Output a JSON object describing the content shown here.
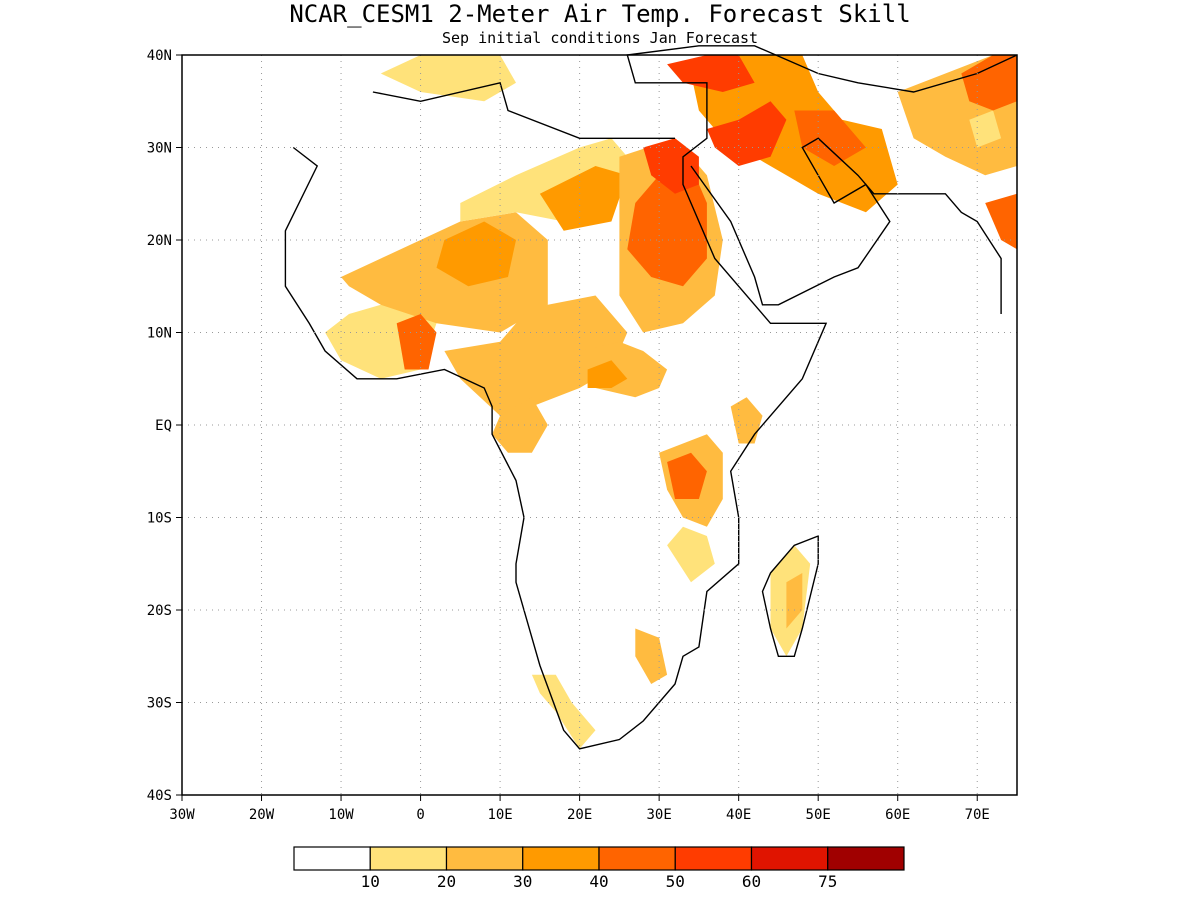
{
  "title": "NCAR_CESM1 2-Meter Air Temp. Forecast Skill",
  "subtitle": "Sep initial conditions  Jan Forecast",
  "map": {
    "lon_range": [
      -30,
      75
    ],
    "lat_range": [
      -40,
      40
    ],
    "lat_ticks": [
      {
        "value": 40,
        "label": "40N"
      },
      {
        "value": 30,
        "label": "30N"
      },
      {
        "value": 20,
        "label": "20N"
      },
      {
        "value": 10,
        "label": "10N"
      },
      {
        "value": 0,
        "label": "EQ"
      },
      {
        "value": -10,
        "label": "10S"
      },
      {
        "value": -20,
        "label": "20S"
      },
      {
        "value": -30,
        "label": "30S"
      },
      {
        "value": -40,
        "label": "40S"
      }
    ],
    "lon_ticks": [
      {
        "value": -30,
        "label": "30W"
      },
      {
        "value": -20,
        "label": "20W"
      },
      {
        "value": -10,
        "label": "10W"
      },
      {
        "value": 0,
        "label": "0"
      },
      {
        "value": 10,
        "label": "10E"
      },
      {
        "value": 20,
        "label": "20E"
      },
      {
        "value": 30,
        "label": "30E"
      },
      {
        "value": 40,
        "label": "40E"
      },
      {
        "value": 50,
        "label": "50E"
      },
      {
        "value": 60,
        "label": "60E"
      },
      {
        "value": 70,
        "label": "70E"
      }
    ],
    "grid": true
  },
  "colorbar": {
    "colors": [
      "#ffffff",
      "#ffe27a",
      "#ffbb40",
      "#ff9a00",
      "#ff6400",
      "#ff3c00",
      "#e01400",
      "#a00000"
    ],
    "labels": [
      "10",
      "20",
      "30",
      "40",
      "50",
      "60",
      "75"
    ]
  },
  "regions": [
    {
      "level": 1,
      "points": [
        [
          -5,
          13
        ],
        [
          -3,
          14
        ],
        [
          0,
          13
        ],
        [
          2,
          11
        ],
        [
          0,
          6
        ],
        [
          -5,
          5
        ],
        [
          -10,
          7
        ],
        [
          -12,
          10
        ],
        [
          -9,
          12
        ]
      ]
    },
    {
      "level": 2,
      "points": [
        [
          -10,
          16
        ],
        [
          -5,
          18
        ],
        [
          5,
          22
        ],
        [
          12,
          23
        ],
        [
          16,
          20
        ],
        [
          16,
          13
        ],
        [
          10,
          10
        ],
        [
          2,
          11
        ],
        [
          -5,
          13
        ],
        [
          -9,
          15
        ]
      ]
    },
    {
      "level": 2,
      "points": [
        [
          3,
          8
        ],
        [
          10,
          9
        ],
        [
          13,
          12
        ],
        [
          16,
          13
        ],
        [
          22,
          14
        ],
        [
          26,
          10
        ],
        [
          24,
          6
        ],
        [
          20,
          4
        ],
        [
          14,
          2
        ],
        [
          10,
          1
        ],
        [
          5,
          5
        ]
      ]
    },
    {
      "level": 1,
      "points": [
        [
          5,
          24
        ],
        [
          12,
          27
        ],
        [
          20,
          30
        ],
        [
          24,
          31
        ],
        [
          27,
          28
        ],
        [
          24,
          24
        ],
        [
          18,
          22
        ],
        [
          12,
          23
        ],
        [
          5,
          22
        ]
      ]
    },
    {
      "level": 3,
      "points": [
        [
          15,
          25
        ],
        [
          22,
          28
        ],
        [
          26,
          27
        ],
        [
          24,
          22
        ],
        [
          18,
          21
        ]
      ]
    },
    {
      "level": 3,
      "points": [
        [
          3,
          20
        ],
        [
          8,
          22
        ],
        [
          12,
          20
        ],
        [
          11,
          16
        ],
        [
          6,
          15
        ],
        [
          2,
          17
        ]
      ]
    },
    {
      "level": 4,
      "points": [
        [
          -3,
          11
        ],
        [
          0,
          12
        ],
        [
          2,
          10
        ],
        [
          1,
          6
        ],
        [
          -2,
          6
        ]
      ]
    },
    {
      "level": 2,
      "points": [
        [
          25,
          29
        ],
        [
          32,
          31
        ],
        [
          36,
          27
        ],
        [
          38,
          20
        ],
        [
          37,
          14
        ],
        [
          33,
          11
        ],
        [
          28,
          10
        ],
        [
          25,
          14
        ],
        [
          25,
          22
        ]
      ]
    },
    {
      "level": 4,
      "points": [
        [
          27,
          24
        ],
        [
          30,
          27
        ],
        [
          34,
          28
        ],
        [
          36,
          24
        ],
        [
          36,
          18
        ],
        [
          33,
          15
        ],
        [
          29,
          16
        ],
        [
          26,
          19
        ]
      ]
    },
    {
      "level": 5,
      "points": [
        [
          28,
          30
        ],
        [
          32,
          31
        ],
        [
          35,
          29
        ],
        [
          35,
          26
        ],
        [
          32,
          25
        ],
        [
          29,
          27
        ]
      ]
    },
    {
      "level": 2,
      "points": [
        [
          20,
          8
        ],
        [
          25,
          9
        ],
        [
          28,
          8
        ],
        [
          31,
          6
        ],
        [
          30,
          4
        ],
        [
          27,
          3
        ],
        [
          22,
          4
        ]
      ]
    },
    {
      "level": 3,
      "points": [
        [
          21,
          6
        ],
        [
          24,
          7
        ],
        [
          26,
          5
        ],
        [
          24,
          4
        ],
        [
          21,
          4
        ]
      ]
    },
    {
      "level": 2,
      "points": [
        [
          10,
          1
        ],
        [
          14,
          3
        ],
        [
          16,
          0
        ],
        [
          14,
          -3
        ],
        [
          11,
          -3
        ],
        [
          9,
          -1
        ]
      ]
    },
    {
      "level": 2,
      "points": [
        [
          30,
          -3
        ],
        [
          33,
          -2
        ],
        [
          36,
          -1
        ],
        [
          38,
          -3
        ],
        [
          38,
          -8
        ],
        [
          36,
          -11
        ],
        [
          33,
          -10
        ],
        [
          31,
          -7
        ]
      ]
    },
    {
      "level": 4,
      "points": [
        [
          31,
          -4
        ],
        [
          34,
          -3
        ],
        [
          36,
          -5
        ],
        [
          35,
          -8
        ],
        [
          32,
          -8
        ]
      ]
    },
    {
      "level": 2,
      "points": [
        [
          39,
          2
        ],
        [
          41,
          3
        ],
        [
          43,
          1
        ],
        [
          42,
          -2
        ],
        [
          40,
          -2
        ]
      ]
    },
    {
      "level": 1,
      "points": [
        [
          44,
          -16
        ],
        [
          47,
          -13
        ],
        [
          49,
          -15
        ],
        [
          48,
          -22
        ],
        [
          46,
          -25
        ],
        [
          44,
          -22
        ]
      ]
    },
    {
      "level": 2,
      "points": [
        [
          46,
          -17
        ],
        [
          48,
          -16
        ],
        [
          48,
          -20
        ],
        [
          46,
          -22
        ]
      ]
    },
    {
      "level": 1,
      "points": [
        [
          14,
          -27
        ],
        [
          17,
          -27
        ],
        [
          19,
          -30
        ],
        [
          22,
          -33
        ],
        [
          20,
          -35
        ],
        [
          17,
          -31
        ],
        [
          15,
          -29
        ]
      ]
    },
    {
      "level": 2,
      "points": [
        [
          27,
          -22
        ],
        [
          30,
          -23
        ],
        [
          31,
          -27
        ],
        [
          29,
          -28
        ],
        [
          27,
          -25
        ]
      ]
    },
    {
      "level": 1,
      "points": [
        [
          31,
          -13
        ],
        [
          33,
          -11
        ],
        [
          36,
          -12
        ],
        [
          37,
          -15
        ],
        [
          34,
          -17
        ]
      ]
    },
    {
      "level": 3,
      "points": [
        [
          34,
          38
        ],
        [
          40,
          40
        ],
        [
          48,
          40
        ],
        [
          50,
          36
        ],
        [
          53,
          33
        ],
        [
          58,
          32
        ],
        [
          60,
          26
        ],
        [
          56,
          23
        ],
        [
          50,
          25
        ],
        [
          46,
          27
        ],
        [
          42,
          29
        ],
        [
          38,
          31
        ],
        [
          35,
          34
        ]
      ]
    },
    {
      "level": 5,
      "points": [
        [
          36,
          32
        ],
        [
          40,
          33
        ],
        [
          44,
          35
        ],
        [
          46,
          33
        ],
        [
          44,
          29
        ],
        [
          40,
          28
        ],
        [
          37,
          30
        ]
      ]
    },
    {
      "level": 4,
      "points": [
        [
          47,
          34
        ],
        [
          52,
          34
        ],
        [
          56,
          30
        ],
        [
          52,
          28
        ],
        [
          48,
          30
        ]
      ]
    },
    {
      "level": 5,
      "points": [
        [
          31,
          39
        ],
        [
          36,
          40
        ],
        [
          40,
          40
        ],
        [
          42,
          37
        ],
        [
          38,
          36
        ],
        [
          33,
          37
        ]
      ]
    },
    {
      "level": 2,
      "points": [
        [
          60,
          36
        ],
        [
          66,
          38
        ],
        [
          72,
          40
        ],
        [
          75,
          39
        ],
        [
          75,
          28
        ],
        [
          71,
          27
        ],
        [
          66,
          29
        ],
        [
          62,
          31
        ]
      ]
    },
    {
      "level": 4,
      "points": [
        [
          68,
          38
        ],
        [
          72,
          40
        ],
        [
          75,
          40
        ],
        [
          75,
          35
        ],
        [
          72,
          34
        ],
        [
          69,
          35
        ]
      ]
    },
    {
      "level": 1,
      "points": [
        [
          69,
          33
        ],
        [
          72,
          34
        ],
        [
          73,
          31
        ],
        [
          70,
          30
        ]
      ]
    },
    {
      "level": 4,
      "points": [
        [
          71,
          24
        ],
        [
          75,
          25
        ],
        [
          75,
          19
        ],
        [
          73,
          20
        ]
      ]
    },
    {
      "level": 1,
      "points": [
        [
          -5,
          38
        ],
        [
          0,
          40
        ],
        [
          10,
          40
        ],
        [
          12,
          37
        ],
        [
          8,
          35
        ],
        [
          0,
          36
        ]
      ]
    }
  ],
  "coastline": [
    [
      -16,
      30
    ],
    [
      -13,
      28
    ],
    [
      -17,
      21
    ],
    [
      -17,
      15
    ],
    [
      -14,
      11
    ],
    [
      -12,
      8
    ],
    [
      -8,
      5
    ],
    [
      -3,
      5
    ],
    [
      3,
      6
    ],
    [
      8,
      4
    ],
    [
      9,
      2
    ],
    [
      9,
      -1
    ],
    [
      12,
      -6
    ],
    [
      13,
      -10
    ],
    [
      12,
      -15
    ],
    [
      12,
      -17
    ],
    [
      15,
      -26
    ],
    [
      18,
      -33
    ],
    [
      20,
      -35
    ],
    [
      25,
      -34
    ],
    [
      28,
      -32
    ],
    [
      32,
      -28
    ],
    [
      33,
      -25
    ],
    [
      35,
      -24
    ],
    [
      36,
      -18
    ],
    [
      40,
      -15
    ],
    [
      40,
      -10
    ],
    [
      39,
      -5
    ],
    [
      42,
      -1
    ],
    [
      48,
      5
    ],
    [
      51,
      11
    ],
    [
      44,
      11
    ],
    [
      42,
      13
    ],
    [
      37,
      18
    ],
    [
      33,
      26
    ],
    [
      33,
      29
    ],
    [
      36,
      31
    ],
    [
      36,
      37
    ],
    [
      27,
      37
    ],
    [
      26,
      40
    ],
    [
      35,
      41
    ],
    [
      42,
      41
    ],
    [
      50,
      38
    ],
    [
      55,
      37
    ],
    [
      62,
      36
    ],
    [
      70,
      38
    ],
    [
      75,
      40
    ]
  ],
  "coastline_north": [
    [
      -6,
      36
    ],
    [
      0,
      35
    ],
    [
      10,
      37
    ],
    [
      11,
      34
    ],
    [
      20,
      31
    ],
    [
      29,
      31
    ],
    [
      32,
      31
    ]
  ],
  "coastline_arabia": [
    [
      34,
      28
    ],
    [
      39,
      22
    ],
    [
      42,
      16
    ],
    [
      43,
      13
    ],
    [
      45,
      13
    ],
    [
      52,
      16
    ],
    [
      55,
      17
    ],
    [
      59,
      22
    ],
    [
      56,
      26
    ],
    [
      52,
      24
    ],
    [
      50,
      27
    ],
    [
      48,
      30
    ],
    [
      50,
      31
    ],
    [
      55,
      27
    ],
    [
      57,
      25
    ],
    [
      62,
      25
    ],
    [
      66,
      25
    ],
    [
      68,
      23
    ],
    [
      70,
      22
    ],
    [
      73,
      18
    ],
    [
      73,
      12
    ]
  ],
  "madagascar": [
    [
      44,
      -16
    ],
    [
      47,
      -13
    ],
    [
      50,
      -12
    ],
    [
      50,
      -15
    ],
    [
      48,
      -22
    ],
    [
      47,
      -25
    ],
    [
      45,
      -25
    ],
    [
      44,
      -22
    ],
    [
      43,
      -18
    ]
  ]
}
